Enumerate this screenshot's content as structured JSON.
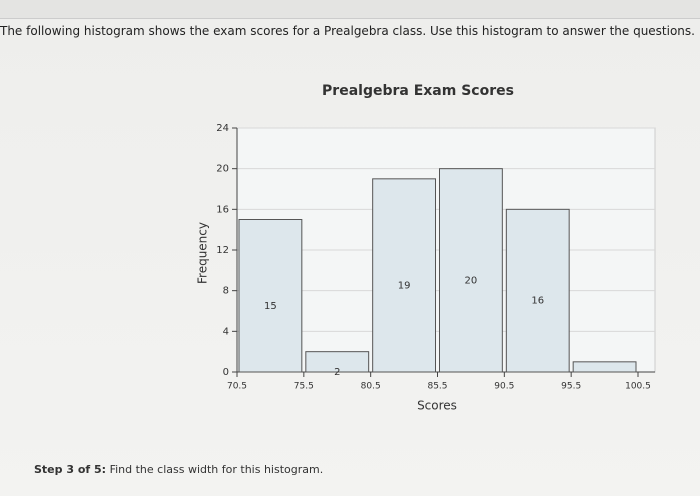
{
  "question": "The following histogram shows the exam scores for a Prealgebra class. Use this histogram to answer the questions.",
  "step_label": "Step 3 of 5:",
  "step_text": "Find the class width for this histogram.",
  "chart_data": {
    "type": "histogram",
    "title": "Prealgebra Exam Scores",
    "x_label": "Scores",
    "y_label": "Frequency",
    "bins": [
      70.5,
      75.5,
      80.5,
      85.5,
      90.5,
      95.5,
      100.5
    ],
    "values": [
      15,
      2,
      19,
      20,
      16,
      1
    ],
    "value_labels": [
      "15",
      "2",
      "19",
      "20",
      "16",
      null
    ],
    "color": "#dde7ec",
    "xlim": [
      70.5,
      100.5
    ],
    "xticks": [
      70.5,
      75.5,
      80.5,
      85.5,
      90.5,
      95.5,
      100.5
    ],
    "ylim": [
      0,
      24
    ],
    "yticks": [
      0,
      4,
      8,
      12,
      16,
      20,
      24
    ],
    "grid": true
  }
}
